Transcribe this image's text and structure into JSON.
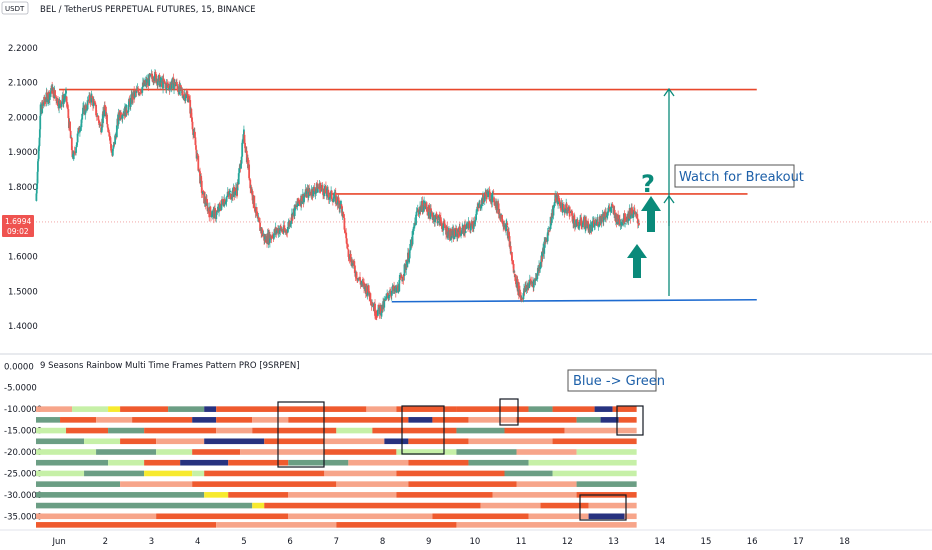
{
  "currency_badge": "USDT",
  "symbol_title": "BEL / TetherUS PERPETUAL FUTURES, 15, BINANCE",
  "indicator_title": "9 Seasons Rainbow Multi Time Frames Pattern PRO [9SRPEN]",
  "price_tag": {
    "price": "1.6994",
    "countdown": "09:02"
  },
  "annotations": {
    "watch": "Watch for Breakout",
    "question": "?",
    "blue_green": "Blue -> Green"
  },
  "colors": {
    "candle_up": "#26a69a",
    "candle_down": "#ef5350",
    "resistance": "#e8472b",
    "support": "#1e6bd0",
    "arrow": "#0a8a7a",
    "annotation_text": "#1c5fa8",
    "price_tag": "#ef5350"
  },
  "chart_data": [
    {
      "type": "line",
      "title": "BEL / TetherUS PERPETUAL FUTURES, 15, BINANCE",
      "ylim": [
        1.36,
        2.28
      ],
      "y_ticks": [
        "2.2000",
        "2.1000",
        "2.0000",
        "1.9000",
        "1.8000",
        "1.6000",
        "1.5000",
        "1.4000"
      ],
      "x_ticks": [
        "Jun",
        "2",
        "3",
        "4",
        "5",
        "6",
        "7",
        "8",
        "9",
        "10",
        "11",
        "12",
        "13",
        "14",
        "15",
        "16",
        "17",
        "18"
      ],
      "x_range": [
        0.5,
        19.2
      ],
      "series": [
        {
          "x": [
            0.5,
            0.6,
            0.7,
            0.85,
            1.0,
            1.15,
            1.3,
            1.5,
            1.7,
            1.9,
            2.0,
            2.15,
            2.3,
            2.45,
            2.6,
            2.75,
            2.9,
            3.05,
            3.2,
            3.35,
            3.5,
            3.65,
            3.8,
            3.95,
            4.1,
            4.25,
            4.4,
            4.55,
            4.7,
            4.85,
            5.0,
            5.15,
            5.3,
            5.45,
            5.6,
            5.75,
            5.9,
            6.05,
            6.2,
            6.35,
            6.5,
            6.65,
            6.8,
            6.95,
            7.1,
            7.25,
            7.4,
            7.55,
            7.7,
            7.85,
            8.0,
            8.15,
            8.3,
            8.45,
            8.6,
            8.75,
            8.9,
            9.05,
            9.2,
            9.35,
            9.5,
            9.65,
            9.8,
            9.95,
            10.1,
            10.25,
            10.4,
            10.55,
            10.7,
            10.85,
            11.0,
            11.15,
            11.3,
            11.45,
            11.6,
            11.75,
            11.9,
            12.05,
            12.2,
            12.35,
            12.5,
            12.65,
            12.8,
            12.95,
            13.1,
            13.25,
            13.4,
            13.55
          ],
          "values": [
            1.76,
            2.02,
            2.05,
            2.08,
            2.04,
            2.06,
            1.88,
            2.01,
            2.06,
            1.97,
            2.03,
            1.89,
            2.01,
            2.02,
            2.06,
            2.08,
            2.1,
            2.12,
            2.1,
            2.09,
            2.1,
            2.07,
            2.06,
            1.92,
            1.78,
            1.73,
            1.72,
            1.76,
            1.78,
            1.79,
            1.95,
            1.8,
            1.7,
            1.65,
            1.66,
            1.68,
            1.67,
            1.72,
            1.76,
            1.78,
            1.79,
            1.8,
            1.78,
            1.77,
            1.75,
            1.62,
            1.56,
            1.52,
            1.5,
            1.44,
            1.45,
            1.5,
            1.5,
            1.55,
            1.62,
            1.73,
            1.75,
            1.72,
            1.71,
            1.68,
            1.66,
            1.67,
            1.68,
            1.69,
            1.75,
            1.78,
            1.77,
            1.72,
            1.68,
            1.55,
            1.48,
            1.52,
            1.53,
            1.6,
            1.68,
            1.77,
            1.74,
            1.73,
            1.69,
            1.7,
            1.68,
            1.7,
            1.72,
            1.74,
            1.7,
            1.71,
            1.73,
            1.7
          ]
        }
      ],
      "levels": [
        {
          "kind": "resistance",
          "value": 2.08,
          "x_start": 1.0,
          "x_end": 16.1
        },
        {
          "kind": "resistance",
          "value": 1.78,
          "x_start": 6.8,
          "x_end": 15.9
        },
        {
          "kind": "support",
          "value": 1.47,
          "x_start": 8.2,
          "x_end": 16.1
        }
      ],
      "price_line": 1.6994
    },
    {
      "type": "heatmap",
      "title": "9 Seasons Rainbow Multi Time Frames Pattern PRO [9SRPEN]",
      "ylim": [
        -37.5,
        1
      ],
      "y_ticks": [
        "0.0000",
        "-5.0000",
        "-10.0000",
        "-15.0000",
        "-20.0000",
        "-25.0000",
        "-30.0000",
        "-35.0000"
      ],
      "rows": [
        -10,
        -12.5,
        -15,
        -17.5,
        -20,
        -22.5,
        -25,
        -27.5,
        -30,
        -32.5,
        -35,
        -37
      ],
      "palette": [
        "#ef5a2e",
        "#f7a58a",
        "#c6f0a7",
        "#f7ea2e",
        "#6b9e84",
        "#27327f",
        "#2ea04e"
      ],
      "bands": [
        [
          [
            0,
            0.06,
            1
          ],
          [
            0.06,
            0.12,
            2
          ],
          [
            0.12,
            0.14,
            3
          ],
          [
            0.14,
            0.22,
            0
          ],
          [
            0.22,
            0.28,
            4
          ],
          [
            0.28,
            0.3,
            5
          ],
          [
            0.3,
            0.55,
            0
          ],
          [
            0.55,
            0.6,
            1
          ],
          [
            0.6,
            0.7,
            0
          ],
          [
            0.7,
            0.82,
            0
          ],
          [
            0.82,
            0.86,
            4
          ],
          [
            0.86,
            0.93,
            0
          ],
          [
            0.93,
            0.96,
            5
          ],
          [
            0.96,
            1.0,
            0
          ]
        ],
        [
          [
            0,
            0.04,
            4
          ],
          [
            0.04,
            0.1,
            0
          ],
          [
            0.1,
            0.16,
            1
          ],
          [
            0.16,
            0.26,
            0
          ],
          [
            0.26,
            0.3,
            5
          ],
          [
            0.3,
            0.36,
            0
          ],
          [
            0.36,
            0.42,
            1
          ],
          [
            0.42,
            0.62,
            0
          ],
          [
            0.62,
            0.66,
            5
          ],
          [
            0.66,
            0.72,
            0
          ],
          [
            0.72,
            0.8,
            1
          ],
          [
            0.8,
            0.9,
            0
          ],
          [
            0.9,
            0.94,
            4
          ],
          [
            0.94,
            0.97,
            5
          ],
          [
            0.97,
            1.0,
            0
          ]
        ],
        [
          [
            0,
            0.05,
            2
          ],
          [
            0.05,
            0.12,
            0
          ],
          [
            0.12,
            0.18,
            4
          ],
          [
            0.18,
            0.3,
            0
          ],
          [
            0.3,
            0.36,
            1
          ],
          [
            0.36,
            0.5,
            0
          ],
          [
            0.5,
            0.56,
            2
          ],
          [
            0.56,
            0.7,
            0
          ],
          [
            0.7,
            0.78,
            4
          ],
          [
            0.78,
            0.88,
            0
          ],
          [
            0.88,
            1.0,
            1
          ]
        ],
        [
          [
            0,
            0.08,
            4
          ],
          [
            0.08,
            0.14,
            2
          ],
          [
            0.14,
            0.2,
            0
          ],
          [
            0.2,
            0.28,
            1
          ],
          [
            0.28,
            0.38,
            5
          ],
          [
            0.38,
            0.48,
            0
          ],
          [
            0.48,
            0.58,
            1
          ],
          [
            0.58,
            0.62,
            5
          ],
          [
            0.62,
            0.72,
            0
          ],
          [
            0.72,
            0.86,
            1
          ],
          [
            0.86,
            1.0,
            0
          ]
        ],
        [
          [
            0,
            0.1,
            2
          ],
          [
            0.1,
            0.2,
            4
          ],
          [
            0.2,
            0.26,
            2
          ],
          [
            0.26,
            0.34,
            0
          ],
          [
            0.34,
            0.48,
            1
          ],
          [
            0.48,
            0.6,
            0
          ],
          [
            0.6,
            0.7,
            2
          ],
          [
            0.7,
            0.8,
            4
          ],
          [
            0.8,
            0.9,
            1
          ],
          [
            0.9,
            1.0,
            2
          ]
        ],
        [
          [
            0,
            0.12,
            4
          ],
          [
            0.12,
            0.18,
            2
          ],
          [
            0.18,
            0.24,
            0
          ],
          [
            0.24,
            0.32,
            5
          ],
          [
            0.32,
            0.42,
            0
          ],
          [
            0.42,
            0.52,
            4
          ],
          [
            0.52,
            0.62,
            1
          ],
          [
            0.62,
            0.72,
            0
          ],
          [
            0.72,
            0.82,
            4
          ],
          [
            0.82,
            1.0,
            2
          ]
        ],
        [
          [
            0,
            0.08,
            2
          ],
          [
            0.08,
            0.18,
            4
          ],
          [
            0.18,
            0.26,
            3
          ],
          [
            0.26,
            0.28,
            2
          ],
          [
            0.28,
            0.48,
            0
          ],
          [
            0.48,
            0.6,
            1
          ],
          [
            0.6,
            0.78,
            0
          ],
          [
            0.78,
            0.86,
            4
          ],
          [
            0.86,
            1.0,
            2
          ]
        ],
        [
          [
            0,
            0.14,
            4
          ],
          [
            0.14,
            0.26,
            1
          ],
          [
            0.26,
            0.5,
            0
          ],
          [
            0.5,
            0.62,
            1
          ],
          [
            0.62,
            0.8,
            0
          ],
          [
            0.8,
            0.9,
            1
          ],
          [
            0.9,
            1.0,
            4
          ]
        ],
        [
          [
            0,
            0.28,
            4
          ],
          [
            0.28,
            0.32,
            3
          ],
          [
            0.32,
            0.42,
            0
          ],
          [
            0.42,
            0.6,
            1
          ],
          [
            0.6,
            0.76,
            0
          ],
          [
            0.76,
            0.9,
            1
          ],
          [
            0.9,
            1.0,
            0
          ]
        ],
        [
          [
            0,
            0.36,
            4
          ],
          [
            0.36,
            0.38,
            3
          ],
          [
            0.38,
            0.74,
            0
          ],
          [
            0.74,
            0.84,
            1
          ],
          [
            0.84,
            0.92,
            0
          ],
          [
            0.92,
            1.0,
            1
          ]
        ],
        [
          [
            0,
            0.2,
            1
          ],
          [
            0.2,
            0.42,
            0
          ],
          [
            0.42,
            0.66,
            1
          ],
          [
            0.66,
            0.82,
            0
          ],
          [
            0.82,
            0.92,
            1
          ],
          [
            0.92,
            0.98,
            5
          ],
          [
            0.98,
            1.0,
            1
          ]
        ],
        [
          [
            0,
            0.3,
            0
          ],
          [
            0.3,
            0.5,
            1
          ],
          [
            0.5,
            0.7,
            0
          ],
          [
            0.7,
            1.0,
            1
          ]
        ]
      ]
    }
  ]
}
